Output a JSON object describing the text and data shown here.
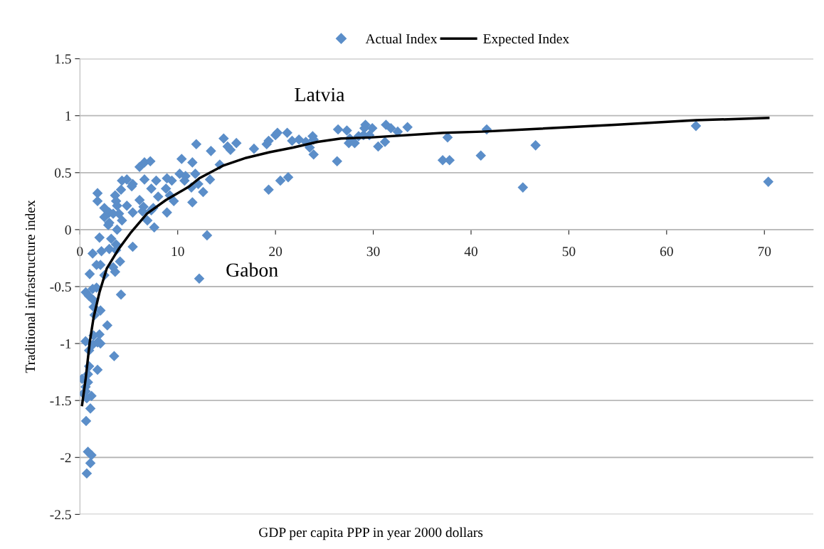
{
  "chart_data": {
    "type": "scatter",
    "xlabel": "GDP per capita PPP in year 2000 dollars",
    "ylabel": "Traditional infrastructure index",
    "annotations": [
      "Latvia",
      "Gabon"
    ],
    "xlim": [
      0,
      75
    ],
    "xticks": [
      0,
      10,
      20,
      30,
      40,
      50,
      60,
      70
    ],
    "ylim": [
      -2.5,
      1.5
    ],
    "yticks": [
      -2.5,
      -2,
      -1.5,
      -1,
      -0.5,
      0,
      0.5,
      1,
      1.5
    ],
    "grid": "y",
    "legend": "top",
    "tick_labels": true,
    "series": [
      {
        "name": "Actual Index",
        "marker": "diamond",
        "color": "#5b8ec9",
        "x": [
          26.4,
          27.3,
          26.3,
          27.6,
          27.5,
          28.1,
          28.5,
          29.0,
          29.2,
          29.1,
          29.6,
          29.9,
          30.5,
          31.2,
          31.3,
          31.8,
          32.5,
          33.5,
          37.6,
          37.1,
          37.8,
          41.0,
          41.6,
          45.3,
          46.6,
          63.0,
          70.4,
          11.9,
          14.7,
          13.4,
          15.1,
          15.4,
          16.0,
          17.8,
          19.1,
          19.3,
          20.0,
          20.2,
          21.2,
          21.7,
          22.4,
          23.1,
          23.8,
          23.9,
          23.5,
          23.9,
          19.3,
          20.5,
          21.3,
          14.3,
          13.3,
          10.4,
          11.5,
          10.2,
          10.8,
          10.7,
          11.8,
          11.4,
          12.1,
          12.6,
          11.5,
          8.9,
          9.4,
          8.8,
          7.8,
          8.0,
          9.2,
          9.6,
          8.9,
          7.3,
          6.6,
          6.1,
          6.6,
          7.2,
          5.3,
          6.1,
          5.4,
          6.5,
          7.3,
          6.4,
          6.9,
          7.6,
          13.0,
          1.8,
          1.8,
          2.5,
          2.5,
          3.0,
          3.0,
          3.6,
          3.7,
          4.3,
          4.8,
          4.2,
          3.8,
          4.8,
          5.4,
          4.0,
          4.3,
          3.8,
          3.4,
          2.9,
          2.0,
          3.2,
          1.3,
          2.2,
          3.0,
          3.7,
          3.7,
          5.4,
          1.7,
          2.1,
          1.0,
          2.5,
          3.4,
          4.1,
          3.6,
          12.2,
          4.2,
          0.6,
          0.9,
          1.7,
          7.5,
          1.3,
          1.4,
          1.4,
          2.1,
          1.5,
          2.8,
          0.58,
          1.4,
          2.0,
          2.1,
          0.94,
          1.3,
          3.5,
          1.8,
          0.94,
          1.8,
          0.82,
          0.22,
          0.82,
          0.58,
          0.34,
          1.18,
          0.7,
          0.58,
          1.07,
          0.63,
          0.82,
          1.18,
          1.07,
          0.7
        ],
        "values": [
          0.88,
          0.87,
          0.6,
          0.8,
          0.76,
          0.76,
          0.82,
          0.83,
          0.92,
          0.89,
          0.83,
          0.89,
          0.73,
          0.77,
          0.92,
          0.89,
          0.86,
          0.9,
          0.81,
          0.61,
          0.61,
          0.65,
          0.88,
          0.37,
          0.74,
          0.91,
          0.42,
          0.75,
          0.8,
          0.69,
          0.73,
          0.7,
          0.76,
          0.71,
          0.75,
          0.78,
          0.83,
          0.85,
          0.85,
          0.78,
          0.79,
          0.77,
          0.82,
          0.79,
          0.72,
          0.66,
          0.35,
          0.43,
          0.46,
          0.57,
          0.44,
          0.62,
          0.59,
          0.49,
          0.47,
          0.43,
          0.49,
          0.37,
          0.4,
          0.33,
          0.24,
          0.45,
          0.43,
          0.36,
          0.43,
          0.29,
          0.3,
          0.25,
          0.15,
          0.36,
          0.44,
          0.55,
          0.59,
          0.6,
          0.38,
          0.26,
          0.15,
          0.2,
          0.17,
          0.16,
          0.08,
          0.02,
          -0.05,
          0.32,
          0.25,
          0.19,
          0.11,
          0.15,
          0.06,
          0.3,
          0.25,
          0.43,
          0.44,
          0.35,
          0.21,
          0.21,
          0.4,
          0.14,
          0.08,
          0.0,
          0.14,
          0.04,
          -0.07,
          -0.08,
          -0.21,
          -0.19,
          -0.17,
          -0.13,
          -0.18,
          -0.15,
          -0.31,
          -0.31,
          -0.39,
          -0.4,
          -0.33,
          -0.28,
          -0.37,
          -0.43,
          -0.57,
          -0.55,
          -0.58,
          -0.51,
          0.19,
          -0.52,
          -0.62,
          -0.68,
          -0.71,
          -0.75,
          -0.84,
          -0.98,
          -0.93,
          -0.92,
          -1.0,
          -1.06,
          -1.01,
          -1.11,
          -0.99,
          -1.2,
          -1.23,
          -1.27,
          -1.31,
          -1.34,
          -1.38,
          -1.44,
          -1.46,
          -1.48,
          -1.42,
          -1.57,
          -1.68,
          -1.95,
          -1.98,
          -2.05,
          -2.14
        ]
      },
      {
        "name": "Expected Index",
        "type": "line",
        "marker": "none",
        "line_style": "solid",
        "color": "#000000",
        "x": [
          0.22,
          0.6,
          1.0,
          1.4,
          2.0,
          2.75,
          3.96,
          5.17,
          6.86,
          8.8,
          11.2,
          12.2,
          14.6,
          17.0,
          19.4,
          21.8,
          24.3,
          26.7,
          29.9,
          37.2,
          41.1,
          45.6,
          54.7,
          63.0,
          70.4
        ],
        "values": [
          -1.54,
          -1.3,
          -0.99,
          -0.77,
          -0.55,
          -0.34,
          -0.17,
          -0.03,
          0.14,
          0.26,
          0.38,
          0.45,
          0.56,
          0.63,
          0.68,
          0.72,
          0.77,
          0.8,
          0.81,
          0.85,
          0.86,
          0.88,
          0.92,
          0.96,
          0.98
        ]
      }
    ]
  }
}
